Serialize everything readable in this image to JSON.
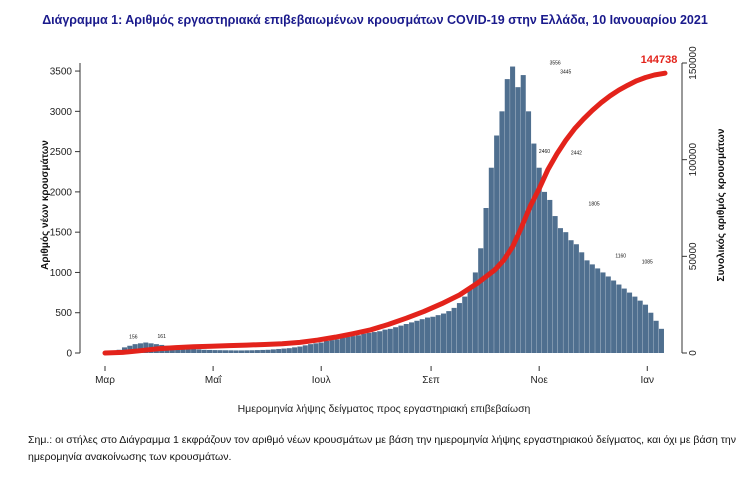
{
  "chart_data": {
    "type": "bar",
    "title": "Διάγραμμα 1: Αριθμός εργαστηριακά επιβεβαιωμένων κρουσμάτων COVID-19 στην Ελλάδα, 10 Ιανουαρίου 2021",
    "xlabel": "Ημερομηνία λήψης δείγματος προς εργαστηριακή επιβεβαίωση",
    "ylabel": "Αριθμός νέων κρουσμάτων",
    "y2label": "Συνολικός αριθμός κρουσμάτων",
    "ylim": [
      0,
      3600
    ],
    "y2lim": [
      0,
      150000
    ],
    "yticks": [
      "0",
      "500",
      "1000",
      "1500",
      "2000",
      "2500",
      "3000",
      "3500"
    ],
    "y2ticks": [
      "0",
      "50000",
      "100000",
      "150000"
    ],
    "xticks": [
      "Μαρ",
      "Μαΐ",
      "Ιουλ",
      "Σεπ",
      "Νοε",
      "Ιαν"
    ],
    "xtick_days": [
      0,
      61,
      122,
      184,
      245,
      306
    ],
    "x_domain_days": [
      0,
      316
    ],
    "grid": false,
    "series": [
      {
        "type": "bar",
        "color": "#4f6f8f",
        "x_days": [
          5,
          8,
          11,
          14,
          17,
          20,
          23,
          26,
          29,
          32,
          35,
          38,
          41,
          44,
          47,
          50,
          53,
          56,
          59,
          62,
          65,
          68,
          71,
          74,
          77,
          80,
          83,
          86,
          89,
          92,
          95,
          98,
          101,
          104,
          107,
          110,
          113,
          116,
          119,
          122,
          125,
          128,
          131,
          134,
          137,
          140,
          143,
          146,
          149,
          152,
          155,
          158,
          161,
          164,
          167,
          170,
          173,
          176,
          179,
          182,
          185,
          188,
          191,
          194,
          197,
          200,
          203,
          206,
          209,
          212,
          215,
          218,
          221,
          224,
          227,
          230,
          233,
          236,
          239,
          242,
          245,
          248,
          251,
          254,
          257,
          260,
          263,
          266,
          269,
          272,
          275,
          278,
          281,
          284,
          287,
          290,
          293,
          296,
          299,
          302,
          305,
          308,
          311,
          314
        ],
        "values": [
          10,
          40,
          70,
          90,
          110,
          120,
          130,
          120,
          110,
          100,
          90,
          80,
          70,
          60,
          55,
          50,
          45,
          40,
          38,
          36,
          35,
          34,
          33,
          32,
          32,
          33,
          34,
          36,
          38,
          40,
          45,
          50,
          55,
          60,
          70,
          80,
          95,
          110,
          120,
          130,
          150,
          160,
          170,
          190,
          200,
          210,
          220,
          240,
          250,
          260,
          270,
          290,
          300,
          320,
          340,
          360,
          380,
          400,
          420,
          440,
          450,
          470,
          490,
          520,
          560,
          620,
          700,
          820,
          1000,
          1300,
          1800,
          2300,
          2700,
          3000,
          3400,
          3556,
          3300,
          3450,
          3000,
          2600,
          2300,
          2000,
          1900,
          1700,
          1550,
          1500,
          1400,
          1350,
          1250,
          1150,
          1100,
          1050,
          1000,
          950,
          900,
          850,
          800,
          750,
          700,
          650,
          600,
          500,
          400,
          300
        ],
        "data_labels": [
          {
            "x_day": 254,
            "value": 3556,
            "label": "3556"
          },
          {
            "x_day": 260,
            "value": 3445,
            "label": "3445"
          },
          {
            "x_day": 266,
            "value": 2442,
            "label": "2442"
          },
          {
            "x_day": 248,
            "value": 2460,
            "label": "2460"
          },
          {
            "x_day": 276,
            "value": 1805,
            "label": "1805"
          },
          {
            "x_day": 291,
            "value": 1160,
            "label": "1160"
          },
          {
            "x_day": 306,
            "value": 1085,
            "label": "1085"
          },
          {
            "x_day": 16,
            "value": 156,
            "label": "156"
          },
          {
            "x_day": 32,
            "value": 161,
            "label": "161"
          }
        ]
      },
      {
        "type": "line",
        "color": "#e3231b",
        "axis": "right",
        "x_days": [
          0,
          10,
          20,
          30,
          40,
          50,
          60,
          70,
          80,
          90,
          100,
          110,
          120,
          130,
          140,
          150,
          160,
          170,
          180,
          190,
          200,
          210,
          220,
          225,
          230,
          235,
          240,
          245,
          250,
          255,
          260,
          265,
          270,
          275,
          280,
          285,
          290,
          295,
          300,
          305,
          310,
          316
        ],
        "values": [
          0,
          300,
          1200,
          2200,
          2800,
          3200,
          3500,
          3800,
          4100,
          4400,
          4800,
          5500,
          6700,
          8200,
          10000,
          12000,
          14800,
          18000,
          21500,
          25500,
          30000,
          36000,
          43000,
          48000,
          55000,
          65000,
          76000,
          85000,
          95000,
          103000,
          110000,
          116000,
          121000,
          125500,
          129500,
          133000,
          136000,
          138500,
          140800,
          142500,
          143800,
          144738
        ]
      }
    ],
    "annotations": [
      {
        "text": "144738",
        "x_day": 316,
        "value": 144738,
        "axis": "right",
        "color": "#e3231b"
      }
    ]
  },
  "footnote": "Σημ.: οι στήλες στο Διάγραμμα 1 εκφράζουν τον αριθμό νέων κρουσμάτων με βάση την ημερομηνία λήψης εργαστηριακού δείγματος, και όχι με βάση την ημερομηνία ανακοίνωσης των κρουσμάτων."
}
